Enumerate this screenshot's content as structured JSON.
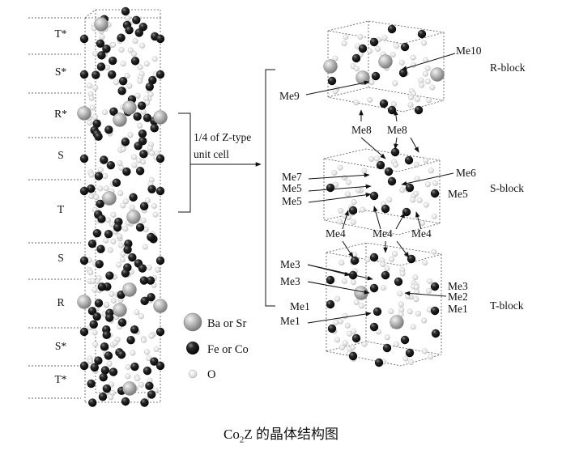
{
  "layer_labels": [
    "T*",
    "S*",
    "R*",
    "S",
    "T",
    "S",
    "R",
    "S*",
    "T*"
  ],
  "bracket_label_line1": "1/4 of Z-type",
  "bracket_label_line2": "unit cell",
  "block_labels": {
    "r": "R-block",
    "s": "S-block",
    "t": "T-block"
  },
  "me_labels": {
    "me10": "Me10",
    "me9": "Me9",
    "me8a": "Me8",
    "me8b": "Me8",
    "me7": "Me7",
    "me6": "Me6",
    "me5a": "Me5",
    "me5b": "Me5",
    "me5c": "Me5",
    "me4a": "Me4",
    "me4b": "Me4",
    "me4c": "Me4",
    "me3a": "Me3",
    "me3b": "Me3",
    "me3c": "Me3",
    "me2": "Me2",
    "me1a": "Me1",
    "me1b": "Me1",
    "me1c": "Me1"
  },
  "legend": [
    {
      "label": "Ba or Sr",
      "color": "#a8a8a8",
      "kind": "large"
    },
    {
      "label": "Fe or Co",
      "color": "#1a1a1a",
      "kind": "medium"
    },
    {
      "label": "O",
      "color": "#e2e2e2",
      "kind": "small"
    }
  ],
  "caption_main": "Co",
  "caption_sub": "2",
  "caption_rest": "Z 的晶体结构图"
}
